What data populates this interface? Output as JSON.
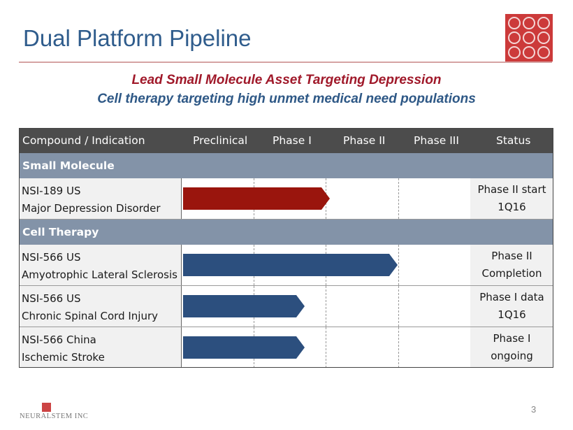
{
  "slide": {
    "title": "Dual Platform Pipeline",
    "subtitle_line1": "Lead Small Molecule Asset Targeting Depression",
    "subtitle_line2": "Cell therapy targeting high unmet medical need populations",
    "page_number": "3",
    "footer_brand": "NEURALSTEM INC"
  },
  "colors": {
    "title": "#2f5c8c",
    "subtitle1": "#a0192a",
    "subtitle2": "#2e5886",
    "header_bg": "#4c4c4c",
    "section_bg": "#8393a8",
    "bar_red": "#9a150d",
    "bar_blue": "#2c4f7e"
  },
  "table": {
    "headers": {
      "compound": "Compound / Indication",
      "preclinical": "Preclinical",
      "phase1": "Phase I",
      "phase2": "Phase II",
      "phase3": "Phase III",
      "status": "Status"
    },
    "sections": [
      {
        "label": "Small Molecule",
        "rows": [
          {
            "compound": "NSI-189   US",
            "indication": "Major Depression Disorder",
            "status_line1": "Phase II start",
            "status_line2": "1Q16",
            "progress_stage": "Phase II",
            "progress_fraction_of_pipeline": 0.52,
            "bar_color": "red"
          }
        ]
      },
      {
        "label": "Cell Therapy",
        "rows": [
          {
            "compound": "NSI-566   US",
            "indication": "Amyotrophic Lateral Sclerosis",
            "status_line1": "Phase II",
            "status_line2": "Completion",
            "progress_stage": "Phase II",
            "progress_fraction_of_pipeline": 0.76,
            "bar_color": "blue"
          },
          {
            "compound": "NSI-566   US",
            "indication": "Chronic Spinal Cord Injury",
            "status_line1": "Phase I data",
            "status_line2": "1Q16",
            "progress_stage": "Phase I",
            "progress_fraction_of_pipeline": 0.43,
            "bar_color": "blue"
          },
          {
            "compound": "NSI-566   China",
            "indication": "Ischemic Stroke",
            "status_line1": "Phase I",
            "status_line2": "ongoing",
            "progress_stage": "Phase I",
            "progress_fraction_of_pipeline": 0.43,
            "bar_color": "blue"
          }
        ]
      }
    ]
  }
}
